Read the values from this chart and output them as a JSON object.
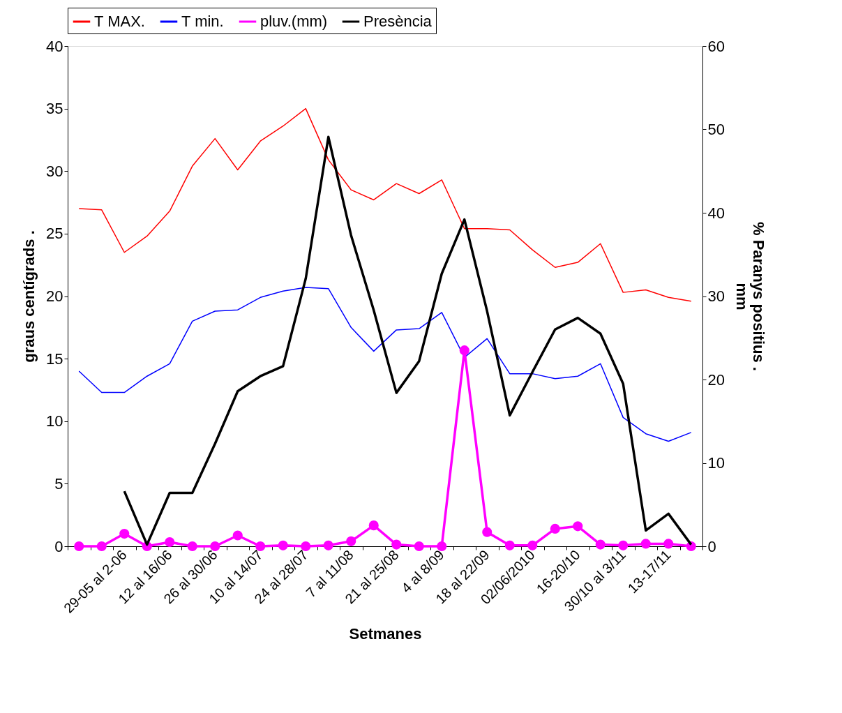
{
  "chart_data": {
    "type": "line",
    "xlabel": "Setmanes",
    "ylabel": "graus centígrads          .",
    "y2label": "% Paranys positius        .\nmm",
    "categories": [
      null,
      null,
      "29-05 al 2-06",
      null,
      "12 al 16/06",
      null,
      "26 al 30/06",
      null,
      "10 al 14/07",
      null,
      "24 al 28/07",
      null,
      "7 al 11/08",
      null,
      "21 al 25/08",
      null,
      "4 al 8/09",
      null,
      "18 al 22/09",
      null,
      "02/06/2010",
      null,
      "16-20/10",
      null,
      "30/10 al 3/11",
      null,
      "13-17/11",
      null
    ],
    "series": [
      {
        "name": "T MAX.",
        "color": "#ff0000",
        "marker": "none",
        "values": [
          27.0,
          26.9,
          23.5,
          24.8,
          26.8,
          30.4,
          32.6,
          30.1,
          32.4,
          33.6,
          35.0,
          30.9,
          28.5,
          27.7,
          29.0,
          28.2,
          29.3,
          25.4,
          25.4,
          25.3,
          23.7,
          22.3,
          22.7,
          24.2,
          20.3,
          20.5,
          19.9,
          19.6
        ]
      },
      {
        "name": "T min.",
        "color": "#0000ff",
        "marker": "none",
        "values": [
          14.0,
          12.3,
          12.3,
          13.6,
          14.6,
          18.0,
          18.8,
          18.9,
          19.9,
          20.4,
          20.7,
          20.6,
          17.5,
          15.6,
          17.3,
          17.4,
          18.7,
          15.1,
          16.6,
          13.8,
          13.8,
          13.4,
          13.6,
          14.6,
          10.3,
          9.0,
          8.4,
          9.1
        ]
      },
      {
        "name": "pluv.(mm)",
        "color": "#ff00ff",
        "marker": "circle",
        "axis": "y2",
        "values": [
          0,
          0,
          1.5,
          0,
          0.5,
          0,
          0,
          1.3,
          0,
          0.1,
          0,
          0.1,
          0.6,
          2.5,
          0.2,
          0,
          0,
          23.5,
          1.7,
          0.1,
          0.1,
          2.1,
          2.4,
          0.2,
          0.1,
          0.3,
          0.3,
          0
        ]
      },
      {
        "name": "Presència",
        "color": "#000000",
        "marker": "none",
        "axis": "y2",
        "values": [
          null,
          null,
          6.6,
          0.2,
          6.4,
          6.4,
          12.3,
          18.6,
          20.4,
          21.6,
          32.1,
          49.1,
          37.3,
          28.3,
          18.4,
          22.2,
          32.7,
          39.2,
          28.2,
          15.7,
          20.9,
          26.0,
          27.4,
          25.5,
          19.5,
          1.9,
          3.9,
          0.2
        ]
      }
    ],
    "ylim": [
      0,
      40
    ],
    "yticks": [
      0,
      5,
      10,
      15,
      20,
      25,
      30,
      35,
      40
    ],
    "y2lim": [
      0,
      60
    ],
    "y2ticks": [
      0,
      10,
      20,
      30,
      40,
      50,
      60
    ],
    "grid": false,
    "legend": "top"
  }
}
